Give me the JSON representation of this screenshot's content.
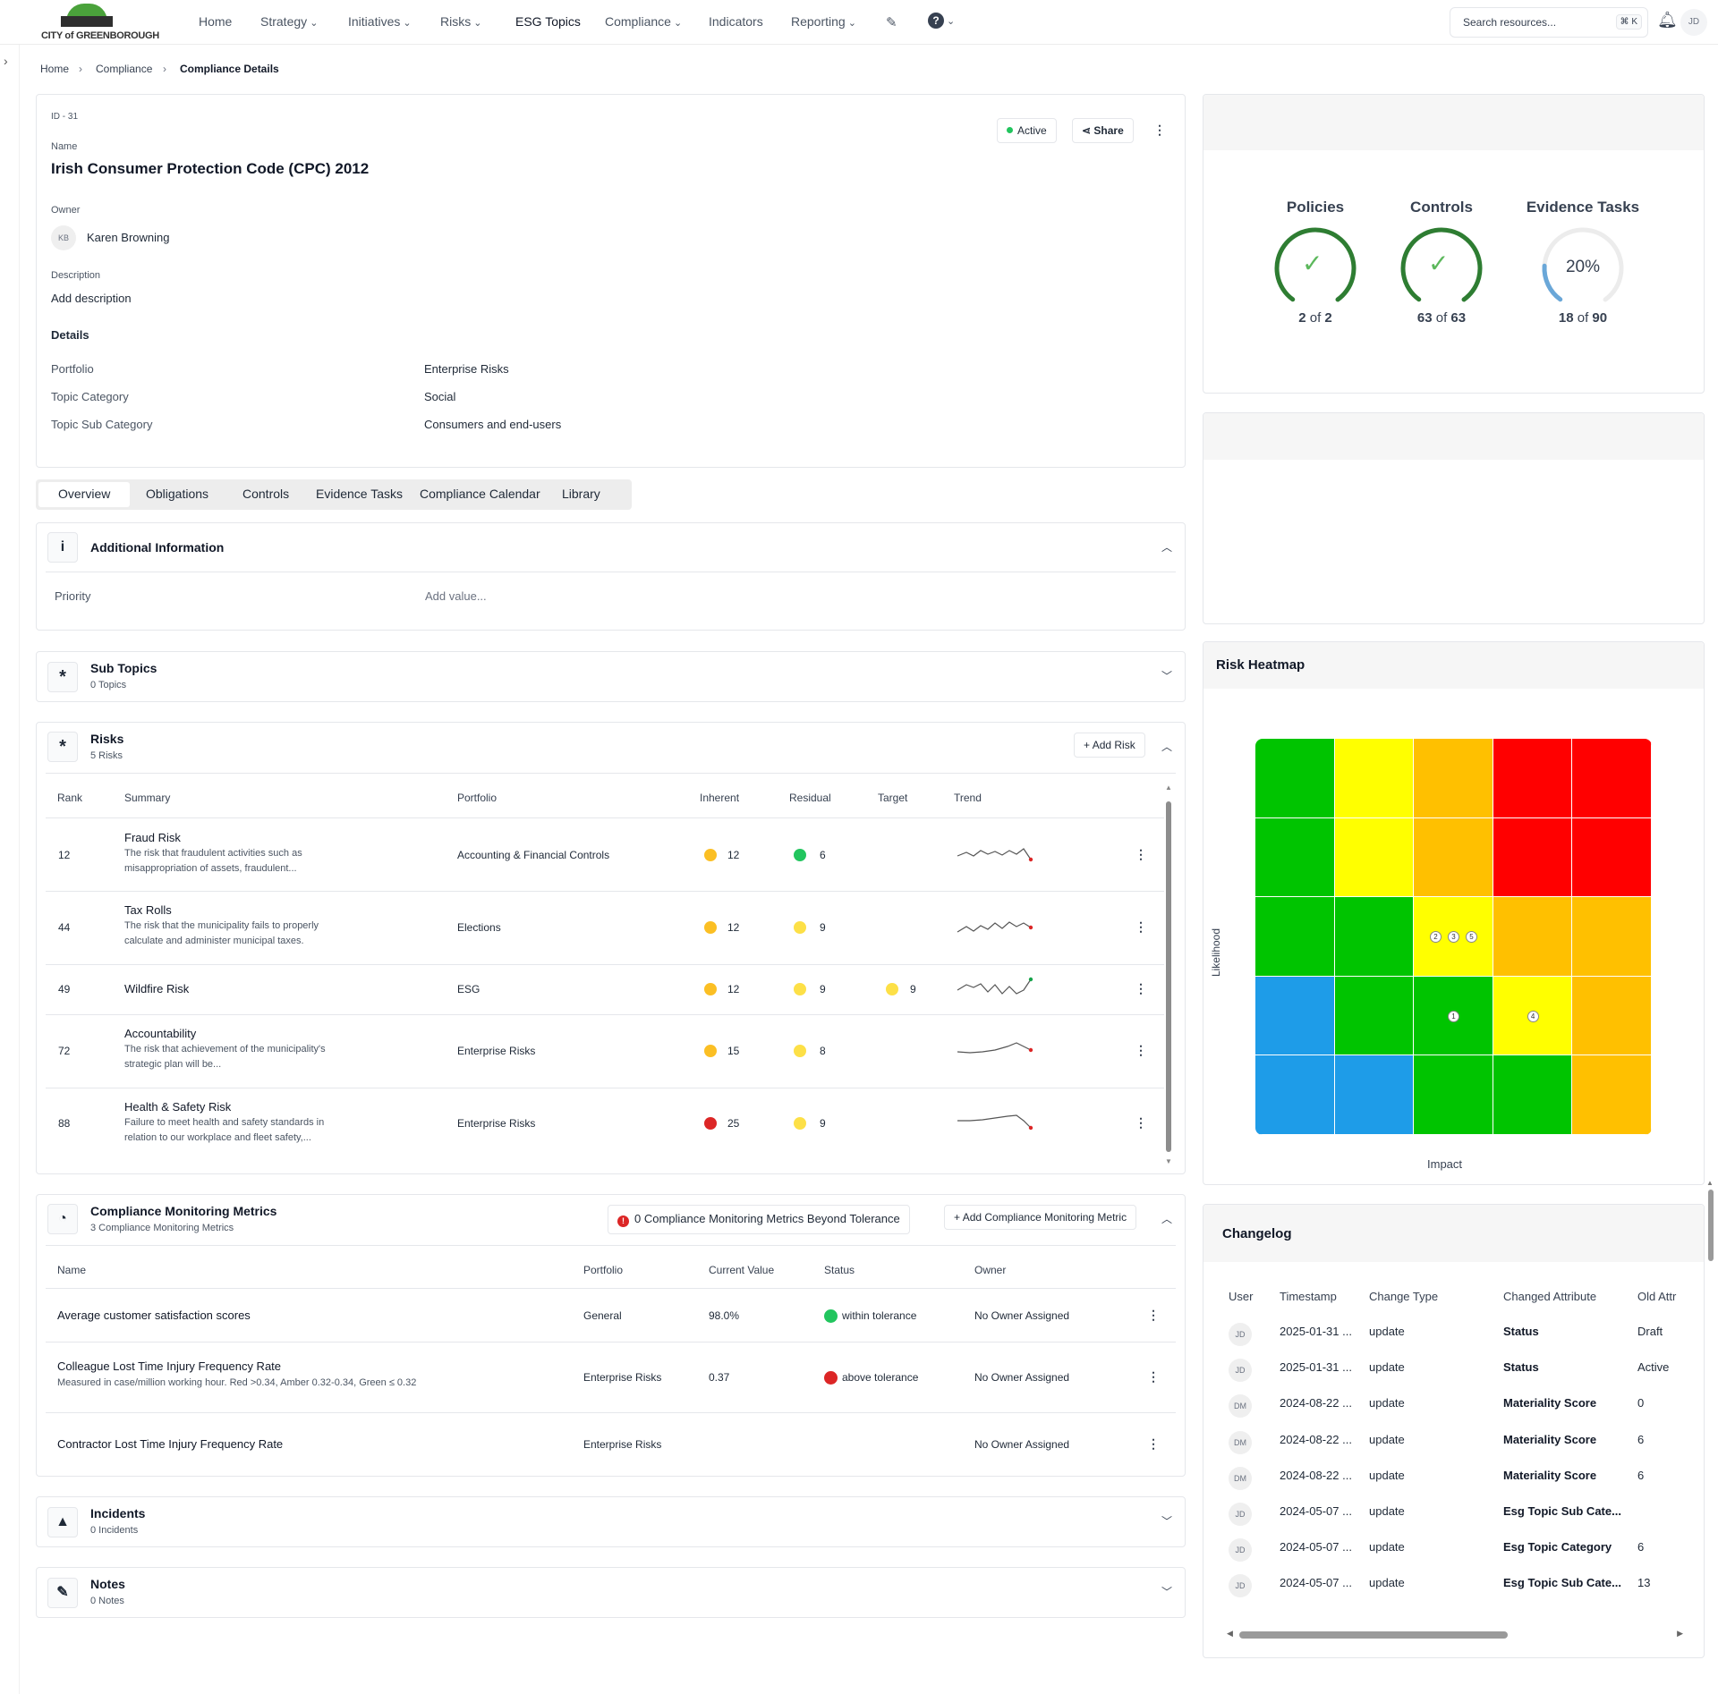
{
  "brand": {
    "logo_text": "CITY of GREENBOROUGH"
  },
  "nav": {
    "items": [
      {
        "label": "Home",
        "dropdown": false
      },
      {
        "label": "Strategy",
        "dropdown": true
      },
      {
        "label": "Initiatives",
        "dropdown": true
      },
      {
        "label": "Risks",
        "dropdown": true
      },
      {
        "label": "ESG Topics",
        "dropdown": false
      },
      {
        "label": "Compliance",
        "dropdown": true
      },
      {
        "label": "Indicators",
        "dropdown": false
      },
      {
        "label": "Reporting",
        "dropdown": true
      }
    ],
    "help_icon": "?"
  },
  "search": {
    "placeholder": "Search resources...",
    "shortcut": "⌘ K"
  },
  "user": {
    "initials": "JD"
  },
  "breadcrumb": {
    "home": "Home",
    "parent": "Compliance",
    "current": "Compliance Details"
  },
  "detail": {
    "id": "ID - 31",
    "name_label": "Name",
    "name": "Irish Consumer Protection Code (CPC) 2012",
    "owner_label": "Owner",
    "owner_initials": "KB",
    "owner_name": "Karen Browning",
    "description_label": "Description",
    "description": "Add description",
    "details_heading": "Details",
    "fields": [
      {
        "label": "Portfolio",
        "value": "Enterprise Risks"
      },
      {
        "label": "Topic Category",
        "value": "Social"
      },
      {
        "label": "Topic Sub Category",
        "value": "Consumers and end-users"
      }
    ],
    "status_label": "Active",
    "status_color": "#22c55e",
    "share_label": "Share"
  },
  "tabs": [
    "Overview",
    "Obligations",
    "Controls",
    "Evidence Tasks",
    "Compliance Calendar",
    "Library"
  ],
  "additional": {
    "title": "Additional Information",
    "priority_label": "Priority",
    "priority_placeholder": "Add value..."
  },
  "subtopics": {
    "title": "Sub Topics",
    "count": "0 Topics"
  },
  "risks": {
    "title": "Risks",
    "count": "5 Risks",
    "add_label": "Add Risk",
    "columns": [
      "Rank",
      "Summary",
      "Portfolio",
      "Inherent",
      "Residual",
      "Target",
      "Trend"
    ],
    "rows": [
      {
        "rank": "12",
        "title": "Fraud Risk",
        "desc": "The risk that fraudulent activities such as misappropriation of assets, fraudulent...",
        "portfolio": "Accounting & Financial Controls",
        "inherent": "12",
        "inherent_color": "#fbbf24",
        "residual": "6",
        "residual_color": "#22c55e",
        "target": "",
        "target_color": "",
        "trend_end": "#dc2626"
      },
      {
        "rank": "44",
        "title": "Tax Rolls",
        "desc": "The risk that the municipality fails to properly calculate and administer municipal taxes.",
        "portfolio": "Elections",
        "inherent": "12",
        "inherent_color": "#fbbf24",
        "residual": "9",
        "residual_color": "#fde047",
        "target": "",
        "target_color": "",
        "trend_end": "#dc2626"
      },
      {
        "rank": "49",
        "title": "Wildfire Risk",
        "desc": "",
        "portfolio": "ESG",
        "inherent": "12",
        "inherent_color": "#fbbf24",
        "residual": "9",
        "residual_color": "#fde047",
        "target": "9",
        "target_color": "#fde047",
        "trend_end": "#16a34a"
      },
      {
        "rank": "72",
        "title": "Accountability",
        "desc": "The risk that achievement of the municipality's strategic plan will be...",
        "portfolio": "Enterprise Risks",
        "inherent": "15",
        "inherent_color": "#fbbf24",
        "residual": "8",
        "residual_color": "#fde047",
        "target": "",
        "target_color": "",
        "trend_end": "#dc2626"
      },
      {
        "rank": "88",
        "title": "Health & Safety Risk",
        "desc": "Failure to meet health and safety standards in relation to our workplace and fleet safety,...",
        "portfolio": "Enterprise Risks",
        "inherent": "25",
        "inherent_color": "#dc2626",
        "residual": "9",
        "residual_color": "#fde047",
        "target": "",
        "target_color": "",
        "trend_end": "#dc2626"
      }
    ]
  },
  "metrics": {
    "title": "Compliance Monitoring Metrics",
    "count": "3 Compliance Monitoring Metrics",
    "beyond_label": "0 Compliance Monitoring Metrics Beyond Tolerance",
    "add_label": "Add Compliance Monitoring Metric",
    "columns": [
      "Name",
      "Portfolio",
      "Current Value",
      "Status",
      "Owner"
    ],
    "rows": [
      {
        "name": "Average customer satisfaction scores",
        "desc": "",
        "portfolio": "General",
        "value": "98.0%",
        "status": "within tolerance",
        "status_color": "#22c55e",
        "owner": "No Owner Assigned"
      },
      {
        "name": "Colleague Lost Time Injury Frequency Rate",
        "desc": "Measured in case/million working hour. Red >0.34, Amber 0.32-0.34, Green ≤ 0.32",
        "portfolio": "Enterprise Risks",
        "value": "0.37",
        "status": "above tolerance",
        "status_color": "#dc2626",
        "owner": "No Owner Assigned"
      },
      {
        "name": "Contractor Lost Time Injury Frequency Rate",
        "desc": "",
        "portfolio": "Enterprise Risks",
        "value": "",
        "status": "",
        "status_color": "",
        "owner": "No Owner Assigned"
      }
    ]
  },
  "incidents": {
    "title": "Incidents",
    "count": "0 Incidents"
  },
  "notes": {
    "title": "Notes",
    "count": "0 Notes"
  },
  "summary": {
    "gauges": [
      {
        "title": "Policies",
        "done": "2",
        "total": "2",
        "fraction": 1,
        "complete": true
      },
      {
        "title": "Controls",
        "done": "63",
        "total": "63",
        "fraction": 1,
        "complete": true
      },
      {
        "title": "Evidence Tasks",
        "done": "18",
        "total": "90",
        "fraction": 0.2,
        "complete": false,
        "percent_label": "20%"
      }
    ],
    "of_word": "of"
  },
  "heatmap": {
    "title": "Risk Heatmap",
    "ylabel": "Likelihood",
    "xlabel": "Impact",
    "grid": [
      [
        "#00c400",
        "#ffff00",
        "#ffc000",
        "#ff0000",
        "#ff0000"
      ],
      [
        "#00c400",
        "#ffff00",
        "#ffc000",
        "#ff0000",
        "#ff0000"
      ],
      [
        "#00c400",
        "#00c400",
        "#ffff00",
        "#ffc000",
        "#ffc000"
      ],
      [
        "#1e9ce8",
        "#00c400",
        "#00c400",
        "#ffff00",
        "#ffc000"
      ],
      [
        "#1e9ce8",
        "#1e9ce8",
        "#00c400",
        "#00c400",
        "#ffc000"
      ]
    ],
    "markers": [
      {
        "label": "2",
        "row": 2,
        "col": 2
      },
      {
        "label": "3",
        "row": 2,
        "col": 2
      },
      {
        "label": "5",
        "row": 2,
        "col": 2
      },
      {
        "label": "1",
        "row": 3,
        "col": 2
      },
      {
        "label": "4",
        "row": 3,
        "col": 3
      }
    ]
  },
  "changelog": {
    "title": "Changelog",
    "columns": [
      "User",
      "Timestamp",
      "Change Type",
      "Changed Attribute",
      "Old Attr"
    ],
    "rows": [
      {
        "user": "JD",
        "ts": "2025-01-31 ...",
        "type": "update",
        "attr": "Status",
        "old": "Draft"
      },
      {
        "user": "JD",
        "ts": "2025-01-31 ...",
        "type": "update",
        "attr": "Status",
        "old": "Active"
      },
      {
        "user": "DM",
        "ts": "2024-08-22 ...",
        "type": "update",
        "attr": "Materiality Score",
        "old": "0"
      },
      {
        "user": "DM",
        "ts": "2024-08-22 ...",
        "type": "update",
        "attr": "Materiality Score",
        "old": "6"
      },
      {
        "user": "DM",
        "ts": "2024-08-22 ...",
        "type": "update",
        "attr": "Materiality Score",
        "old": "6"
      },
      {
        "user": "JD",
        "ts": "2024-05-07 ...",
        "type": "update",
        "attr": "Esg Topic Sub Cate...",
        "old": ""
      },
      {
        "user": "JD",
        "ts": "2024-05-07 ...",
        "type": "update",
        "attr": "Esg Topic Category",
        "old": "6"
      },
      {
        "user": "JD",
        "ts": "2024-05-07 ...",
        "type": "update",
        "attr": "Esg Topic Sub Cate...",
        "old": "13"
      }
    ]
  }
}
